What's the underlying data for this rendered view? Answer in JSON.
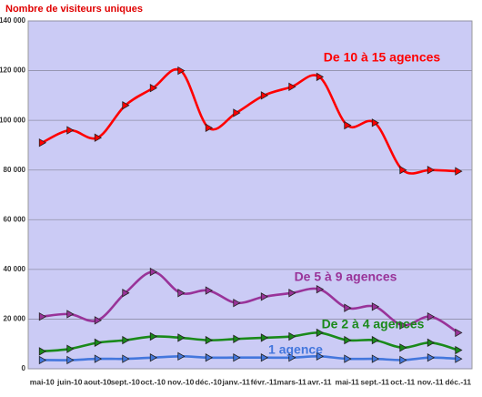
{
  "chart_data": {
    "type": "line",
    "title": "Nombre de visiteurs uniques",
    "categories": [
      "mai-10",
      "juin-10",
      "aout-10",
      "sept.-10",
      "oct.-10",
      "nov.-10",
      "déc.-10",
      "janv.-11",
      "févr.-11",
      "mars-11",
      "avr.-11",
      "mai-11",
      "sept.-11",
      "oct.-11",
      "nov.-11",
      "déc.-11"
    ],
    "series": [
      {
        "name": "De 10 à 15 agences",
        "color": "#ff0000",
        "values": [
          91000,
          96000,
          93000,
          106000,
          113000,
          120000,
          97000,
          103000,
          110000,
          113500,
          117500,
          98000,
          99000,
          80000,
          80000,
          79500
        ]
      },
      {
        "name": "De 5 à 9 agences",
        "color": "#993399",
        "values": [
          21000,
          22000,
          19500,
          30500,
          39000,
          30500,
          31500,
          26500,
          29000,
          30500,
          32000,
          24500,
          25000,
          17500,
          21000,
          14500
        ]
      },
      {
        "name": "De 2 à 4 agences",
        "color": "#1a8a1a",
        "values": [
          7000,
          8000,
          10500,
          11500,
          13000,
          12500,
          11500,
          12000,
          12500,
          13000,
          14500,
          11500,
          11500,
          8500,
          10500,
          7500
        ]
      },
      {
        "name": "1 agence",
        "color": "#4477dd",
        "values": [
          3500,
          3500,
          4000,
          4000,
          4500,
          5000,
          4500,
          4500,
          4500,
          4500,
          5000,
          4000,
          4000,
          3500,
          4500,
          4000
        ]
      }
    ],
    "ylim": [
      0,
      140000
    ],
    "yticks": [
      {
        "value": 0,
        "label": "0"
      },
      {
        "value": 20000,
        "label": "20 000"
      },
      {
        "value": 40000,
        "label": "40 000"
      },
      {
        "value": 60000,
        "label": "60 000"
      },
      {
        "value": 80000,
        "label": "80 000"
      },
      {
        "value": 100000,
        "label": "100 000"
      },
      {
        "value": 120000,
        "label": "120 000"
      },
      {
        "value": 140000,
        "label": "140 000"
      }
    ],
    "grid": true
  }
}
